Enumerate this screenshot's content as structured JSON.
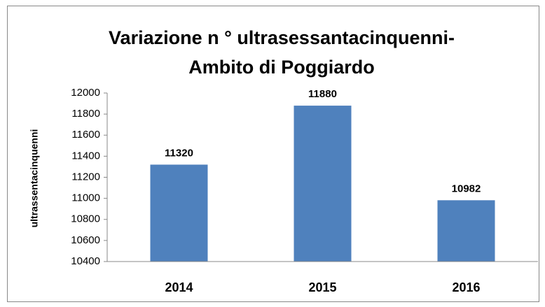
{
  "chart_data": {
    "type": "bar",
    "title": [
      "Variazione  n ° ultrasessantacinquenni-",
      "Ambito di Poggiardo"
    ],
    "y_label": "ultrassentacinquenni",
    "categories": [
      "2014",
      "2015",
      "2016"
    ],
    "values": [
      11320,
      11880,
      10982
    ],
    "color": "#4f81bd",
    "ylim": [
      10400,
      12000
    ],
    "yticks": [
      10400,
      10600,
      10800,
      11000,
      11200,
      11400,
      11600,
      11800,
      12000
    ],
    "grid": false
  }
}
